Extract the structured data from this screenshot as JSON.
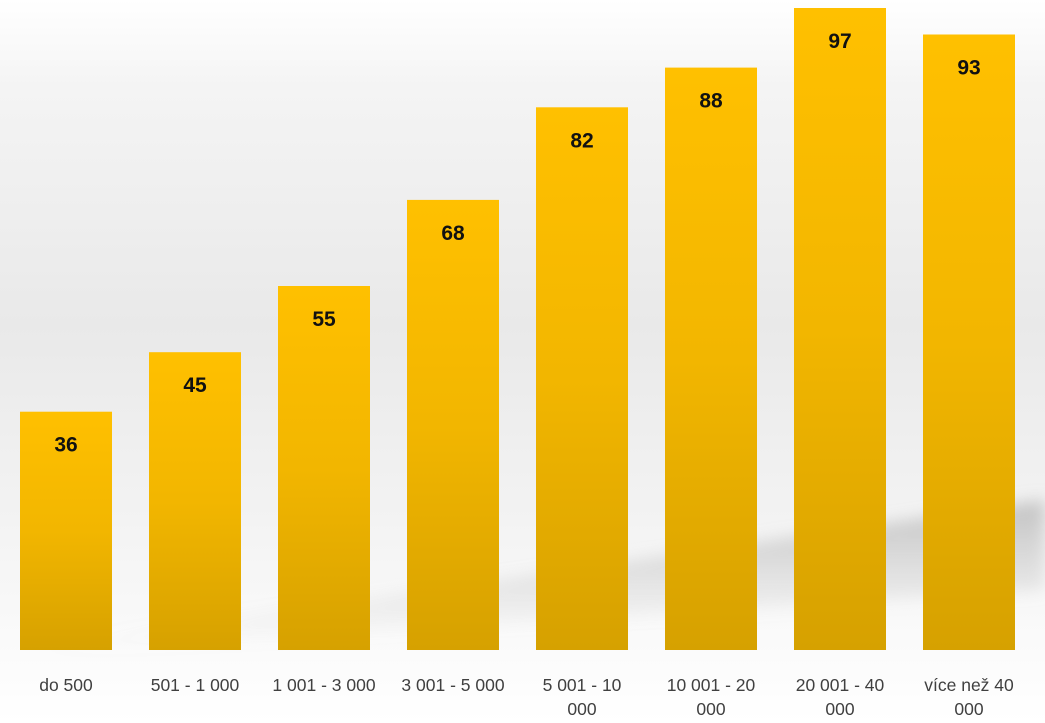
{
  "chart_data": {
    "type": "bar",
    "title": "",
    "xlabel": "",
    "ylabel": "",
    "categories": [
      [
        "do 500"
      ],
      [
        "501 - 1 000"
      ],
      [
        "1 001 - 3 000"
      ],
      [
        "3 001 - 5 000"
      ],
      [
        "5 001 - 10",
        "000"
      ],
      [
        "10 001 - 20",
        "000"
      ],
      [
        "20 001 - 40",
        "000"
      ],
      [
        "více než 40",
        "000"
      ]
    ],
    "values": [
      36,
      45,
      55,
      68,
      82,
      88,
      97,
      93
    ],
    "ylim": [
      0,
      100
    ],
    "data_labels": true,
    "grid": false,
    "legend": "none",
    "bar_color_top": "#FFC000",
    "bar_color_bottom": "#D6A100",
    "label_color": "#111111",
    "category_color": "#404040"
  }
}
